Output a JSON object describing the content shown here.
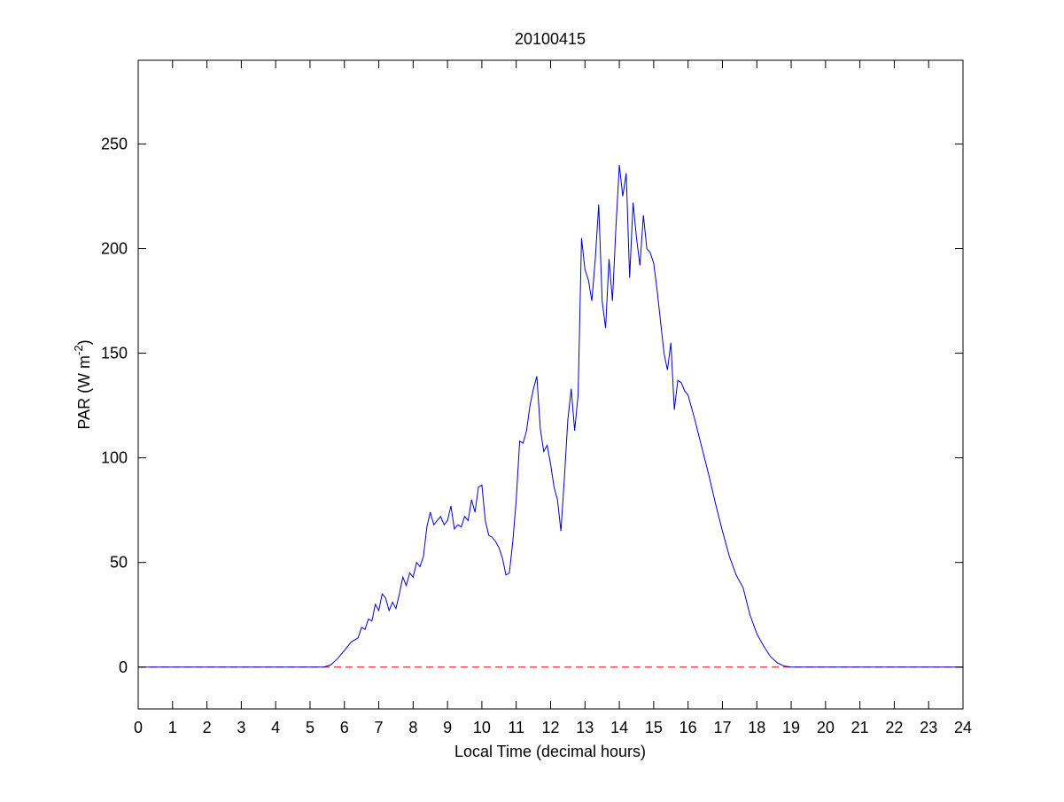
{
  "chart_data": {
    "type": "line",
    "title": "20100415",
    "xlabel": "Local Time (decimal hours)",
    "ylabel_parts": [
      "PAR (W m",
      "-2",
      ")"
    ],
    "xlim": [
      0,
      24
    ],
    "ylim": [
      -20,
      290
    ],
    "xticks": [
      0,
      1,
      2,
      3,
      4,
      5,
      6,
      7,
      8,
      9,
      10,
      11,
      12,
      13,
      14,
      15,
      16,
      17,
      18,
      19,
      20,
      21,
      22,
      23,
      24
    ],
    "yticks": [
      0,
      50,
      100,
      150,
      200,
      250
    ],
    "reference_line": {
      "value": 0,
      "color": "#ff0000",
      "style": "dashed"
    },
    "series": [
      {
        "color": "#0000cc",
        "x": [
          0,
          5.4,
          5.6,
          5.8,
          6.0,
          6.2,
          6.4,
          6.5,
          6.6,
          6.7,
          6.8,
          6.9,
          7.0,
          7.1,
          7.2,
          7.3,
          7.4,
          7.5,
          7.6,
          7.7,
          7.8,
          7.9,
          8.0,
          8.1,
          8.2,
          8.3,
          8.4,
          8.5,
          8.6,
          8.7,
          8.8,
          8.9,
          9.0,
          9.1,
          9.2,
          9.3,
          9.4,
          9.5,
          9.6,
          9.7,
          9.8,
          9.9,
          10.0,
          10.1,
          10.2,
          10.3,
          10.4,
          10.5,
          10.6,
          10.7,
          10.8,
          10.9,
          11.0,
          11.1,
          11.2,
          11.3,
          11.4,
          11.5,
          11.6,
          11.7,
          11.8,
          11.9,
          12.0,
          12.1,
          12.2,
          12.3,
          12.4,
          12.5,
          12.6,
          12.7,
          12.8,
          12.9,
          13.0,
          13.1,
          13.2,
          13.3,
          13.4,
          13.5,
          13.6,
          13.7,
          13.8,
          13.9,
          14.0,
          14.1,
          14.2,
          14.3,
          14.4,
          14.5,
          14.6,
          14.7,
          14.8,
          14.9,
          15.0,
          15.1,
          15.2,
          15.3,
          15.4,
          15.5,
          15.6,
          15.7,
          15.8,
          15.9,
          16.0,
          16.2,
          16.4,
          16.6,
          16.8,
          17.0,
          17.2,
          17.4,
          17.6,
          17.8,
          18.0,
          18.2,
          18.4,
          18.6,
          18.8,
          19.0,
          24
        ],
        "values": [
          0,
          0,
          1,
          4,
          8,
          12,
          14,
          19,
          18,
          23,
          22,
          30,
          27,
          35,
          33,
          27,
          31,
          28,
          35,
          43,
          39,
          45,
          43,
          50,
          48,
          53,
          67,
          74,
          68,
          70,
          72,
          68,
          70,
          77,
          66,
          68,
          67,
          72,
          70,
          80,
          74,
          86,
          87,
          70,
          63,
          62,
          60,
          57,
          52,
          44,
          45,
          60,
          80,
          108,
          107,
          113,
          125,
          133,
          139,
          114,
          103,
          106,
          97,
          86,
          80,
          65,
          90,
          118,
          133,
          113,
          130,
          205,
          190,
          185,
          175,
          195,
          221,
          175,
          162,
          195,
          175,
          210,
          240,
          225,
          236,
          186,
          222,
          205,
          192,
          216,
          200,
          198,
          193,
          180,
          165,
          150,
          142,
          155,
          123,
          137,
          136,
          132,
          130,
          118,
          105,
          92,
          78,
          65,
          53,
          44,
          38,
          25,
          16,
          10,
          5,
          2,
          0.5,
          0,
          0
        ]
      }
    ]
  }
}
